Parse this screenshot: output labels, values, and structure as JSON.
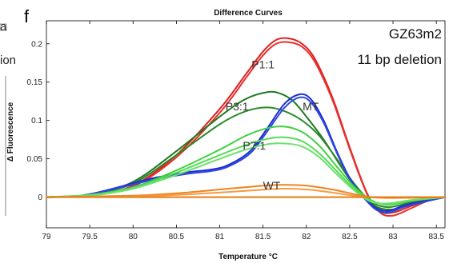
{
  "panel_letter": "f",
  "left_cut_text": {
    "line1": "a",
    "line2": "ion"
  },
  "chart_data": {
    "type": "line",
    "title": "Difference Curves",
    "xlabel": "Temperature °C",
    "ylabel": "Δ Fluorescence",
    "xlim": [
      79,
      83.6
    ],
    "ylim": [
      -0.04,
      0.23
    ],
    "xticks": [
      "79",
      "79.5",
      "80",
      "80.5",
      "81",
      "81.5",
      "82",
      "82.5",
      "83",
      "83.5"
    ],
    "yticks": [
      "0",
      "0.05",
      "0.1",
      "0.15",
      "0.2"
    ],
    "annotations": {
      "sample": "GZ63m2",
      "mutation": "11 bp deletion"
    },
    "labels": [
      {
        "text": "P1:1",
        "x": 81.5,
        "y": 0.168
      },
      {
        "text": "P3:1",
        "x": 81.2,
        "y": 0.113
      },
      {
        "text": "MT",
        "x": 82.05,
        "y": 0.113
      },
      {
        "text": "P7:1",
        "x": 81.4,
        "y": 0.062
      },
      {
        "text": "WT",
        "x": 81.6,
        "y": 0.01
      }
    ],
    "series": [
      {
        "group": "P1:1",
        "color": "#e02020",
        "points": [
          [
            79,
            0
          ],
          [
            79.5,
            0.002
          ],
          [
            80,
            0.015
          ],
          [
            80.5,
            0.055
          ],
          [
            81,
            0.115
          ],
          [
            81.3,
            0.16
          ],
          [
            81.5,
            0.19
          ],
          [
            81.65,
            0.205
          ],
          [
            81.8,
            0.207
          ],
          [
            81.95,
            0.2
          ],
          [
            82.1,
            0.18
          ],
          [
            82.3,
            0.13
          ],
          [
            82.5,
            0.065
          ],
          [
            82.7,
            0.005
          ],
          [
            82.85,
            -0.018
          ],
          [
            83,
            -0.02
          ],
          [
            83.2,
            -0.012
          ],
          [
            83.4,
            -0.004
          ],
          [
            83.6,
            0
          ]
        ]
      },
      {
        "group": "P1:1",
        "color": "#e83030",
        "points": [
          [
            79,
            0
          ],
          [
            79.5,
            0.002
          ],
          [
            80,
            0.014
          ],
          [
            80.5,
            0.052
          ],
          [
            81,
            0.11
          ],
          [
            81.3,
            0.155
          ],
          [
            81.5,
            0.185
          ],
          [
            81.65,
            0.2
          ],
          [
            81.8,
            0.202
          ],
          [
            81.95,
            0.196
          ],
          [
            82.1,
            0.176
          ],
          [
            82.3,
            0.127
          ],
          [
            82.5,
            0.063
          ],
          [
            82.7,
            0.004
          ],
          [
            82.85,
            -0.02
          ],
          [
            83,
            -0.024
          ],
          [
            83.2,
            -0.015
          ],
          [
            83.4,
            -0.005
          ],
          [
            83.6,
            0
          ]
        ]
      },
      {
        "group": "P3:1",
        "color": "#1f7a1f",
        "points": [
          [
            79,
            0
          ],
          [
            79.5,
            0.003
          ],
          [
            80,
            0.02
          ],
          [
            80.5,
            0.06
          ],
          [
            81,
            0.105
          ],
          [
            81.3,
            0.128
          ],
          [
            81.55,
            0.137
          ],
          [
            81.7,
            0.135
          ],
          [
            81.85,
            0.125
          ],
          [
            82,
            0.105
          ],
          [
            82.2,
            0.075
          ],
          [
            82.4,
            0.04
          ],
          [
            82.6,
            0.008
          ],
          [
            82.8,
            -0.012
          ],
          [
            83,
            -0.016
          ],
          [
            83.2,
            -0.008
          ],
          [
            83.6,
            0
          ]
        ]
      },
      {
        "group": "P3:1",
        "color": "#2a8a2a",
        "points": [
          [
            79,
            0
          ],
          [
            79.5,
            0.003
          ],
          [
            80,
            0.018
          ],
          [
            80.5,
            0.055
          ],
          [
            81,
            0.095
          ],
          [
            81.3,
            0.112
          ],
          [
            81.55,
            0.117
          ],
          [
            81.75,
            0.112
          ],
          [
            81.95,
            0.1
          ],
          [
            82.15,
            0.08
          ],
          [
            82.35,
            0.05
          ],
          [
            82.55,
            0.018
          ],
          [
            82.75,
            -0.006
          ],
          [
            82.95,
            -0.013
          ],
          [
            83.2,
            -0.007
          ],
          [
            83.6,
            0
          ]
        ]
      },
      {
        "group": "MT",
        "color": "#1c2fd0",
        "points": [
          [
            79,
            0
          ],
          [
            79.4,
            0.002
          ],
          [
            79.8,
            0.012
          ],
          [
            80.2,
            0.024
          ],
          [
            80.6,
            0.032
          ],
          [
            80.9,
            0.036
          ],
          [
            81.1,
            0.042
          ],
          [
            81.35,
            0.06
          ],
          [
            81.55,
            0.09
          ],
          [
            81.75,
            0.122
          ],
          [
            81.92,
            0.134
          ],
          [
            82.05,
            0.128
          ],
          [
            82.2,
            0.1
          ],
          [
            82.35,
            0.06
          ],
          [
            82.5,
            0.025
          ],
          [
            82.65,
            0.002
          ],
          [
            82.8,
            -0.014
          ],
          [
            82.95,
            -0.018
          ],
          [
            83.15,
            -0.01
          ],
          [
            83.6,
            0
          ]
        ]
      },
      {
        "group": "MT",
        "color": "#2f46e0",
        "points": [
          [
            79,
            0
          ],
          [
            79.4,
            0.002
          ],
          [
            79.8,
            0.011
          ],
          [
            80.2,
            0.022
          ],
          [
            80.6,
            0.03
          ],
          [
            80.9,
            0.034
          ],
          [
            81.1,
            0.04
          ],
          [
            81.35,
            0.057
          ],
          [
            81.55,
            0.086
          ],
          [
            81.75,
            0.117
          ],
          [
            81.92,
            0.13
          ],
          [
            82.05,
            0.124
          ],
          [
            82.2,
            0.097
          ],
          [
            82.35,
            0.058
          ],
          [
            82.5,
            0.024
          ],
          [
            82.65,
            0.001
          ],
          [
            82.8,
            -0.016
          ],
          [
            82.95,
            -0.02
          ],
          [
            83.15,
            -0.012
          ],
          [
            83.6,
            0
          ]
        ]
      },
      {
        "group": "P7:1",
        "color": "#3fd13f",
        "points": [
          [
            79,
            0
          ],
          [
            79.5,
            0.003
          ],
          [
            80,
            0.013
          ],
          [
            80.5,
            0.035
          ],
          [
            81,
            0.062
          ],
          [
            81.3,
            0.08
          ],
          [
            81.55,
            0.09
          ],
          [
            81.75,
            0.092
          ],
          [
            81.95,
            0.085
          ],
          [
            82.15,
            0.067
          ],
          [
            82.35,
            0.04
          ],
          [
            82.55,
            0.014
          ],
          [
            82.75,
            -0.004
          ],
          [
            82.95,
            -0.01
          ],
          [
            83.2,
            -0.005
          ],
          [
            83.6,
            0
          ]
        ]
      },
      {
        "group": "P7:1",
        "color": "#55dd55",
        "points": [
          [
            79,
            0
          ],
          [
            79.5,
            0.003
          ],
          [
            80,
            0.012
          ],
          [
            80.5,
            0.032
          ],
          [
            81,
            0.055
          ],
          [
            81.3,
            0.068
          ],
          [
            81.55,
            0.076
          ],
          [
            81.75,
            0.078
          ],
          [
            81.95,
            0.073
          ],
          [
            82.15,
            0.057
          ],
          [
            82.35,
            0.034
          ],
          [
            82.55,
            0.011
          ],
          [
            82.75,
            -0.005
          ],
          [
            82.95,
            -0.009
          ],
          [
            83.2,
            -0.004
          ],
          [
            83.6,
            0
          ]
        ]
      },
      {
        "group": "P7:1",
        "color": "#6ae26a",
        "points": [
          [
            79,
            0
          ],
          [
            79.5,
            0.002
          ],
          [
            80,
            0.011
          ],
          [
            80.5,
            0.029
          ],
          [
            81,
            0.05
          ],
          [
            81.3,
            0.062
          ],
          [
            81.55,
            0.069
          ],
          [
            81.75,
            0.07
          ],
          [
            81.95,
            0.066
          ],
          [
            82.15,
            0.052
          ],
          [
            82.35,
            0.03
          ],
          [
            82.55,
            0.009
          ],
          [
            82.75,
            -0.006
          ],
          [
            82.95,
            -0.008
          ],
          [
            83.2,
            -0.004
          ],
          [
            83.6,
            0
          ]
        ]
      },
      {
        "group": "WT",
        "color": "#f0821e",
        "points": [
          [
            79,
            0
          ],
          [
            80,
            0.002
          ],
          [
            80.5,
            0.005
          ],
          [
            81,
            0.01
          ],
          [
            81.4,
            0.014
          ],
          [
            81.7,
            0.016
          ],
          [
            82,
            0.015
          ],
          [
            82.3,
            0.01
          ],
          [
            82.55,
            0.004
          ],
          [
            82.75,
            0
          ],
          [
            83,
            -0.001
          ],
          [
            83.6,
            0
          ]
        ]
      },
      {
        "group": "WT",
        "color": "#f59a40",
        "points": [
          [
            79,
            0
          ],
          [
            80,
            0.001
          ],
          [
            80.5,
            0.003
          ],
          [
            81,
            0.006
          ],
          [
            81.4,
            0.009
          ],
          [
            81.7,
            0.011
          ],
          [
            82,
            0.01
          ],
          [
            82.3,
            0.006
          ],
          [
            82.55,
            0.002
          ],
          [
            82.75,
            0
          ],
          [
            83.6,
            0
          ]
        ]
      },
      {
        "group": "WT",
        "color": "#e87a10",
        "points": [
          [
            79,
            0
          ],
          [
            83.6,
            0
          ]
        ]
      }
    ]
  }
}
